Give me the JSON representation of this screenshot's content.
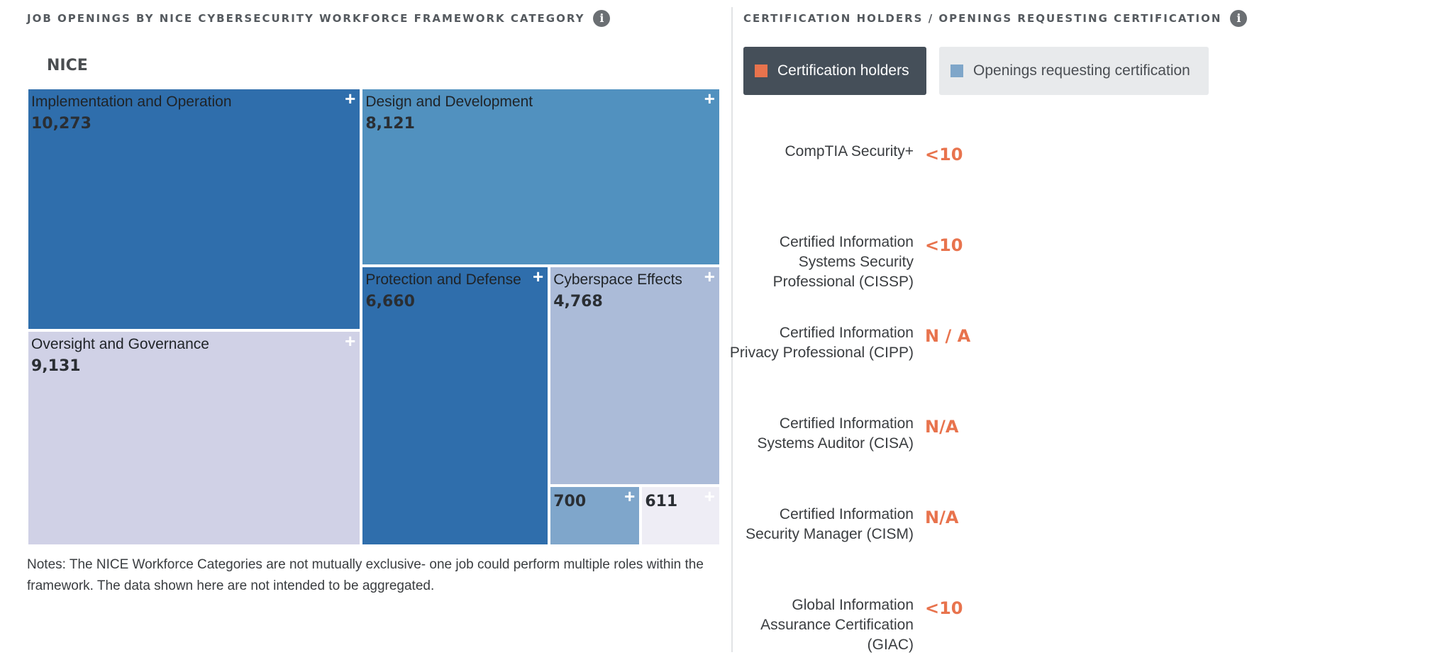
{
  "left_panel": {
    "title": "JOB OPENINGS BY NICE CYBERSECURITY WORKFORCE FRAMEWORK CATEGORY",
    "info_icon": "i",
    "root_label": "NICE",
    "notes": "Notes: The NICE Workforce Categories are not mutually exclusive- one job could perform multiple roles within the framework. The data shown here are not intended to be aggregated."
  },
  "right_panel": {
    "title": "CERTIFICATION HOLDERS / OPENINGS REQUESTING CERTIFICATION",
    "info_icon": "i",
    "toggles": [
      {
        "label": "Certification holders",
        "active": true,
        "swatch_color": "#e8734d"
      },
      {
        "label": "Openings requesting certification",
        "active": false,
        "swatch_color": "#7fa6c9"
      }
    ],
    "certifications": [
      {
        "label": "CompTIA Security+",
        "value": "<10"
      },
      {
        "label": "Certified Information Systems Security Professional (CISSP)",
        "value": "<10"
      },
      {
        "label": "Certified Information Privacy Professional (CIPP)",
        "value": "N / A"
      },
      {
        "label": "Certified Information Systems Auditor (CISA)",
        "value": "N/A"
      },
      {
        "label": "Certified Information Security Manager (CISM)",
        "value": "N/A"
      },
      {
        "label": "Global Information Assurance Certification (GIAC)",
        "value": "<10"
      }
    ]
  },
  "chart_data": {
    "type": "treemap",
    "title": "JOB OPENINGS BY NICE CYBERSECURITY WORKFORCE FRAMEWORK CATEGORY",
    "root": "NICE",
    "nodes": [
      {
        "name": "Implementation and Operation",
        "value": 10273,
        "display": "10,273",
        "color": "#2f6eac"
      },
      {
        "name": "Oversight and Governance",
        "value": 9131,
        "display": "9,131",
        "color": "#d0d1e6"
      },
      {
        "name": "Design and Development",
        "value": 8121,
        "display": "8,121",
        "color": "#5191bf"
      },
      {
        "name": "Protection and Defense",
        "value": 6660,
        "display": "6,660",
        "color": "#2f6eac"
      },
      {
        "name": "Cyberspace Effects",
        "value": 4768,
        "display": "4,768",
        "color": "#abbbd8"
      },
      {
        "name": "",
        "value": 700,
        "display": "700",
        "color": "#7fa6cb"
      },
      {
        "name": "",
        "value": 611,
        "display": "611",
        "color": "#eeedf5"
      }
    ]
  }
}
